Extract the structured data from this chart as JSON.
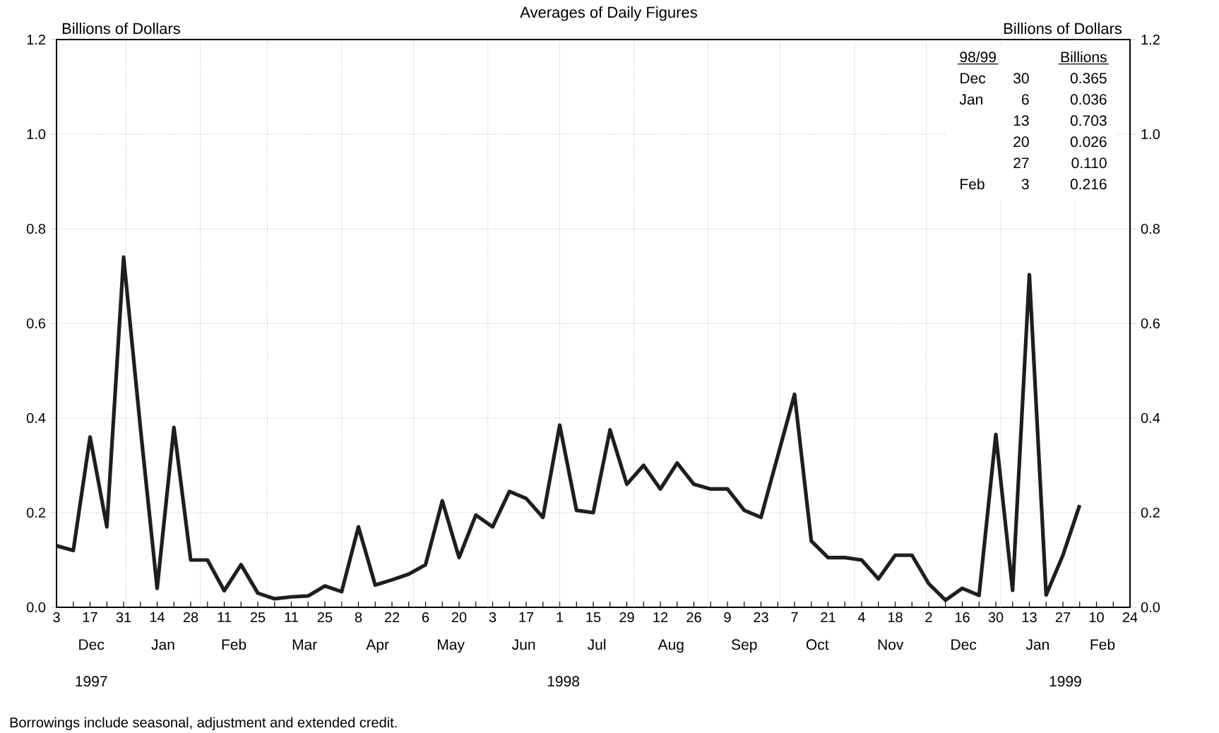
{
  "chart_data": {
    "type": "line",
    "title": "Averages of Daily Figures",
    "ylabel": "Billions of Dollars",
    "y2label": "Billions of Dollars",
    "color": "#1e1e1e",
    "line_style": "solid",
    "grid": true,
    "x": [
      "1997-12-03",
      "1997-12-10",
      "1997-12-17",
      "1997-12-24",
      "1997-12-31",
      "1998-01-07",
      "1998-01-14",
      "1998-01-21",
      "1998-01-28",
      "1998-02-04",
      "1998-02-11",
      "1998-02-18",
      "1998-02-25",
      "1998-03-04",
      "1998-03-11",
      "1998-03-18",
      "1998-03-25",
      "1998-04-01",
      "1998-04-08",
      "1998-04-15",
      "1998-04-22",
      "1998-04-29",
      "1998-05-06",
      "1998-05-13",
      "1998-05-20",
      "1998-05-27",
      "1998-06-03",
      "1998-06-10",
      "1998-06-17",
      "1998-06-24",
      "1998-07-01",
      "1998-07-08",
      "1998-07-15",
      "1998-07-22",
      "1998-07-29",
      "1998-08-05",
      "1998-08-12",
      "1998-08-19",
      "1998-08-26",
      "1998-09-02",
      "1998-09-09",
      "1998-09-16",
      "1998-09-23",
      "1998-09-30",
      "1998-10-07",
      "1998-10-14",
      "1998-10-21",
      "1998-10-28",
      "1998-11-04",
      "1998-11-11",
      "1998-11-18",
      "1998-11-25",
      "1998-12-02",
      "1998-12-09",
      "1998-12-16",
      "1998-12-23",
      "1998-12-30",
      "1999-01-06",
      "1999-01-13",
      "1999-01-20",
      "1999-01-27",
      "1999-02-03"
    ],
    "values": [
      0.13,
      0.12,
      0.36,
      0.17,
      0.74,
      0.38,
      0.04,
      0.38,
      0.1,
      0.1,
      0.035,
      0.09,
      0.03,
      0.018,
      0.022,
      0.024,
      0.045,
      0.033,
      0.17,
      0.047,
      0.058,
      0.07,
      0.09,
      0.225,
      0.105,
      0.195,
      0.17,
      0.245,
      0.23,
      0.19,
      0.385,
      0.205,
      0.2,
      0.375,
      0.26,
      0.3,
      0.25,
      0.305,
      0.26,
      0.25,
      0.25,
      0.205,
      0.19,
      0.32,
      0.45,
      0.14,
      0.105,
      0.105,
      0.1,
      0.06,
      0.11,
      0.11,
      0.05,
      0.015,
      0.04,
      0.025,
      0.365,
      0.036,
      0.703,
      0.026,
      0.11,
      0.216
    ],
    "xlim": [
      "1997-12-03",
      "1999-02-24"
    ],
    "xticks": [
      {
        "value": "1997-12-03",
        "label": "3"
      },
      {
        "value": "1997-12-10",
        "label": null
      },
      {
        "value": "1997-12-17",
        "label": "17"
      },
      {
        "value": "1997-12-24",
        "label": null
      },
      {
        "value": "1997-12-31",
        "label": "31"
      },
      {
        "value": "1998-01-07",
        "label": null
      },
      {
        "value": "1998-01-14",
        "label": "14"
      },
      {
        "value": "1998-01-21",
        "label": null
      },
      {
        "value": "1998-01-28",
        "label": "28"
      },
      {
        "value": "1998-02-04",
        "label": null
      },
      {
        "value": "1998-02-11",
        "label": "11"
      },
      {
        "value": "1998-02-18",
        "label": null
      },
      {
        "value": "1998-02-25",
        "label": "25"
      },
      {
        "value": "1998-03-04",
        "label": null
      },
      {
        "value": "1998-03-11",
        "label": "11"
      },
      {
        "value": "1998-03-18",
        "label": null
      },
      {
        "value": "1998-03-25",
        "label": "25"
      },
      {
        "value": "1998-04-01",
        "label": null
      },
      {
        "value": "1998-04-08",
        "label": "8"
      },
      {
        "value": "1998-04-15",
        "label": null
      },
      {
        "value": "1998-04-22",
        "label": "22"
      },
      {
        "value": "1998-04-29",
        "label": null
      },
      {
        "value": "1998-05-06",
        "label": "6"
      },
      {
        "value": "1998-05-13",
        "label": null
      },
      {
        "value": "1998-05-20",
        "label": "20"
      },
      {
        "value": "1998-05-27",
        "label": null
      },
      {
        "value": "1998-06-03",
        "label": "3"
      },
      {
        "value": "1998-06-10",
        "label": null
      },
      {
        "value": "1998-06-17",
        "label": "17"
      },
      {
        "value": "1998-06-24",
        "label": null
      },
      {
        "value": "1998-07-01",
        "label": "1"
      },
      {
        "value": "1998-07-08",
        "label": null
      },
      {
        "value": "1998-07-15",
        "label": "15"
      },
      {
        "value": "1998-07-22",
        "label": null
      },
      {
        "value": "1998-07-29",
        "label": "29"
      },
      {
        "value": "1998-08-05",
        "label": null
      },
      {
        "value": "1998-08-12",
        "label": "12"
      },
      {
        "value": "1998-08-19",
        "label": null
      },
      {
        "value": "1998-08-26",
        "label": "26"
      },
      {
        "value": "1998-09-02",
        "label": null
      },
      {
        "value": "1998-09-09",
        "label": "9"
      },
      {
        "value": "1998-09-16",
        "label": null
      },
      {
        "value": "1998-09-23",
        "label": "23"
      },
      {
        "value": "1998-09-30",
        "label": null
      },
      {
        "value": "1998-10-07",
        "label": "7"
      },
      {
        "value": "1998-10-14",
        "label": null
      },
      {
        "value": "1998-10-21",
        "label": "21"
      },
      {
        "value": "1998-10-28",
        "label": null
      },
      {
        "value": "1998-11-04",
        "label": "4"
      },
      {
        "value": "1998-11-11",
        "label": null
      },
      {
        "value": "1998-11-18",
        "label": "18"
      },
      {
        "value": "1998-11-25",
        "label": null
      },
      {
        "value": "1998-12-02",
        "label": "2"
      },
      {
        "value": "1998-12-09",
        "label": null
      },
      {
        "value": "1998-12-16",
        "label": "16"
      },
      {
        "value": "1998-12-23",
        "label": null
      },
      {
        "value": "1998-12-30",
        "label": "30"
      },
      {
        "value": "1999-01-06",
        "label": null
      },
      {
        "value": "1999-01-13",
        "label": "13"
      },
      {
        "value": "1999-01-20",
        "label": null
      },
      {
        "value": "1999-01-27",
        "label": "27"
      },
      {
        "value": "1999-02-03",
        "label": null
      },
      {
        "value": "1999-02-10",
        "label": "10"
      },
      {
        "value": "1999-02-17",
        "label": null
      },
      {
        "value": "1999-02-24",
        "label": "24"
      }
    ],
    "ylim": [
      0,
      1.2
    ],
    "yticks": [
      {
        "value": 0,
        "label": "0.0"
      },
      0.2,
      0.4,
      0.6,
      0.8,
      {
        "value": 1.0,
        "label": "1.0"
      },
      1.2
    ],
    "y2lim": [
      0,
      1.2
    ],
    "y2ticks": [
      {
        "value": 0,
        "label": "0.0"
      },
      0.2,
      0.4,
      0.6,
      0.8,
      {
        "value": 1.0,
        "label": "1.0"
      },
      1.2
    ],
    "annotations": [
      "Borrowings include seasonal, adjustment and extended credit.",
      "Dec",
      "Jan",
      "Feb",
      "Mar",
      "Apr",
      "May",
      "Jun",
      "Jul",
      "Aug",
      "Sep",
      "Oct",
      "Nov",
      "Dec",
      "Jan",
      "Feb",
      "1997",
      "1998",
      "1999",
      "98/99",
      "Billions",
      "Dec",
      "30",
      "0.365",
      "Jan",
      "6",
      "0.036",
      "13",
      "0.703",
      "20",
      "0.026",
      "27",
      "0.110",
      "Feb",
      "3",
      "0.216"
    ]
  }
}
